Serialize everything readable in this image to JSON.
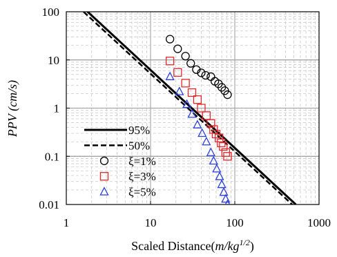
{
  "chart_data": {
    "type": "scatter",
    "x_scale": "log",
    "y_scale": "log",
    "xlim": [
      1,
      1000
    ],
    "ylim": [
      0.01,
      100
    ],
    "grid": true,
    "xlabel": {
      "main": "Scaled Distance(",
      "italic": "m/kg",
      "sup": "1/2",
      "close": ")"
    },
    "ylabel": "PPV (cm/s)",
    "x_ticks": [
      {
        "value": 1,
        "label": "1"
      },
      {
        "value": 10,
        "label": "10"
      },
      {
        "value": 100,
        "label": "100"
      },
      {
        "value": 1000,
        "label": "1000"
      }
    ],
    "y_ticks": [
      {
        "value": 0.01,
        "label": "0.01"
      },
      {
        "value": 0.1,
        "label": "0.1"
      },
      {
        "value": 1,
        "label": "1"
      },
      {
        "value": 10,
        "label": "10"
      },
      {
        "value": 100,
        "label": "100"
      }
    ],
    "legend_position": "bottom-left",
    "lines": [
      {
        "name": "95%",
        "style": "solid",
        "color": "#000000",
        "points": [
          [
            1.6,
            120
          ],
          [
            530,
            0.01
          ]
        ]
      },
      {
        "name": "50%",
        "style": "dashed",
        "color": "#000000",
        "points": [
          [
            1.6,
            100
          ],
          [
            480,
            0.01
          ]
        ]
      }
    ],
    "series": [
      {
        "name": "ξ=1%",
        "marker": "circle",
        "color": "#000000",
        "points": [
          [
            17,
            27
          ],
          [
            21,
            17
          ],
          [
            26,
            12
          ],
          [
            30,
            8.5
          ],
          [
            35,
            6.3
          ],
          [
            40,
            5.4
          ],
          [
            45,
            4.8
          ],
          [
            52,
            4.5
          ],
          [
            58,
            3.6
          ],
          [
            64,
            3.2
          ],
          [
            70,
            2.7
          ],
          [
            76,
            2.3
          ],
          [
            82,
            1.9
          ]
        ]
      },
      {
        "name": "ξ=3%",
        "marker": "square",
        "color": "#e3262a",
        "points": [
          [
            17,
            9.5
          ],
          [
            21,
            5.5
          ],
          [
            26,
            3.3
          ],
          [
            31,
            2.1
          ],
          [
            36,
            1.5
          ],
          [
            40,
            1.0
          ],
          [
            46,
            0.7
          ],
          [
            52,
            0.48
          ],
          [
            56,
            0.36
          ],
          [
            60,
            0.29
          ],
          [
            65,
            0.24
          ],
          [
            69,
            0.19
          ],
          [
            73,
            0.16
          ],
          [
            78,
            0.12
          ],
          [
            82,
            0.1
          ]
        ]
      },
      {
        "name": "ξ=5%",
        "marker": "triangle",
        "color": "#2a3fd8",
        "points": [
          [
            17,
            4.5
          ],
          [
            22,
            2.2
          ],
          [
            27,
            1.2
          ],
          [
            31,
            0.75
          ],
          [
            36,
            0.45
          ],
          [
            41,
            0.3
          ],
          [
            46,
            0.2
          ],
          [
            52,
            0.12
          ],
          [
            56,
            0.08
          ],
          [
            61,
            0.055
          ],
          [
            66,
            0.038
          ],
          [
            70,
            0.026
          ],
          [
            74,
            0.018
          ],
          [
            78,
            0.013
          ],
          [
            82,
            0.01
          ]
        ]
      }
    ]
  }
}
